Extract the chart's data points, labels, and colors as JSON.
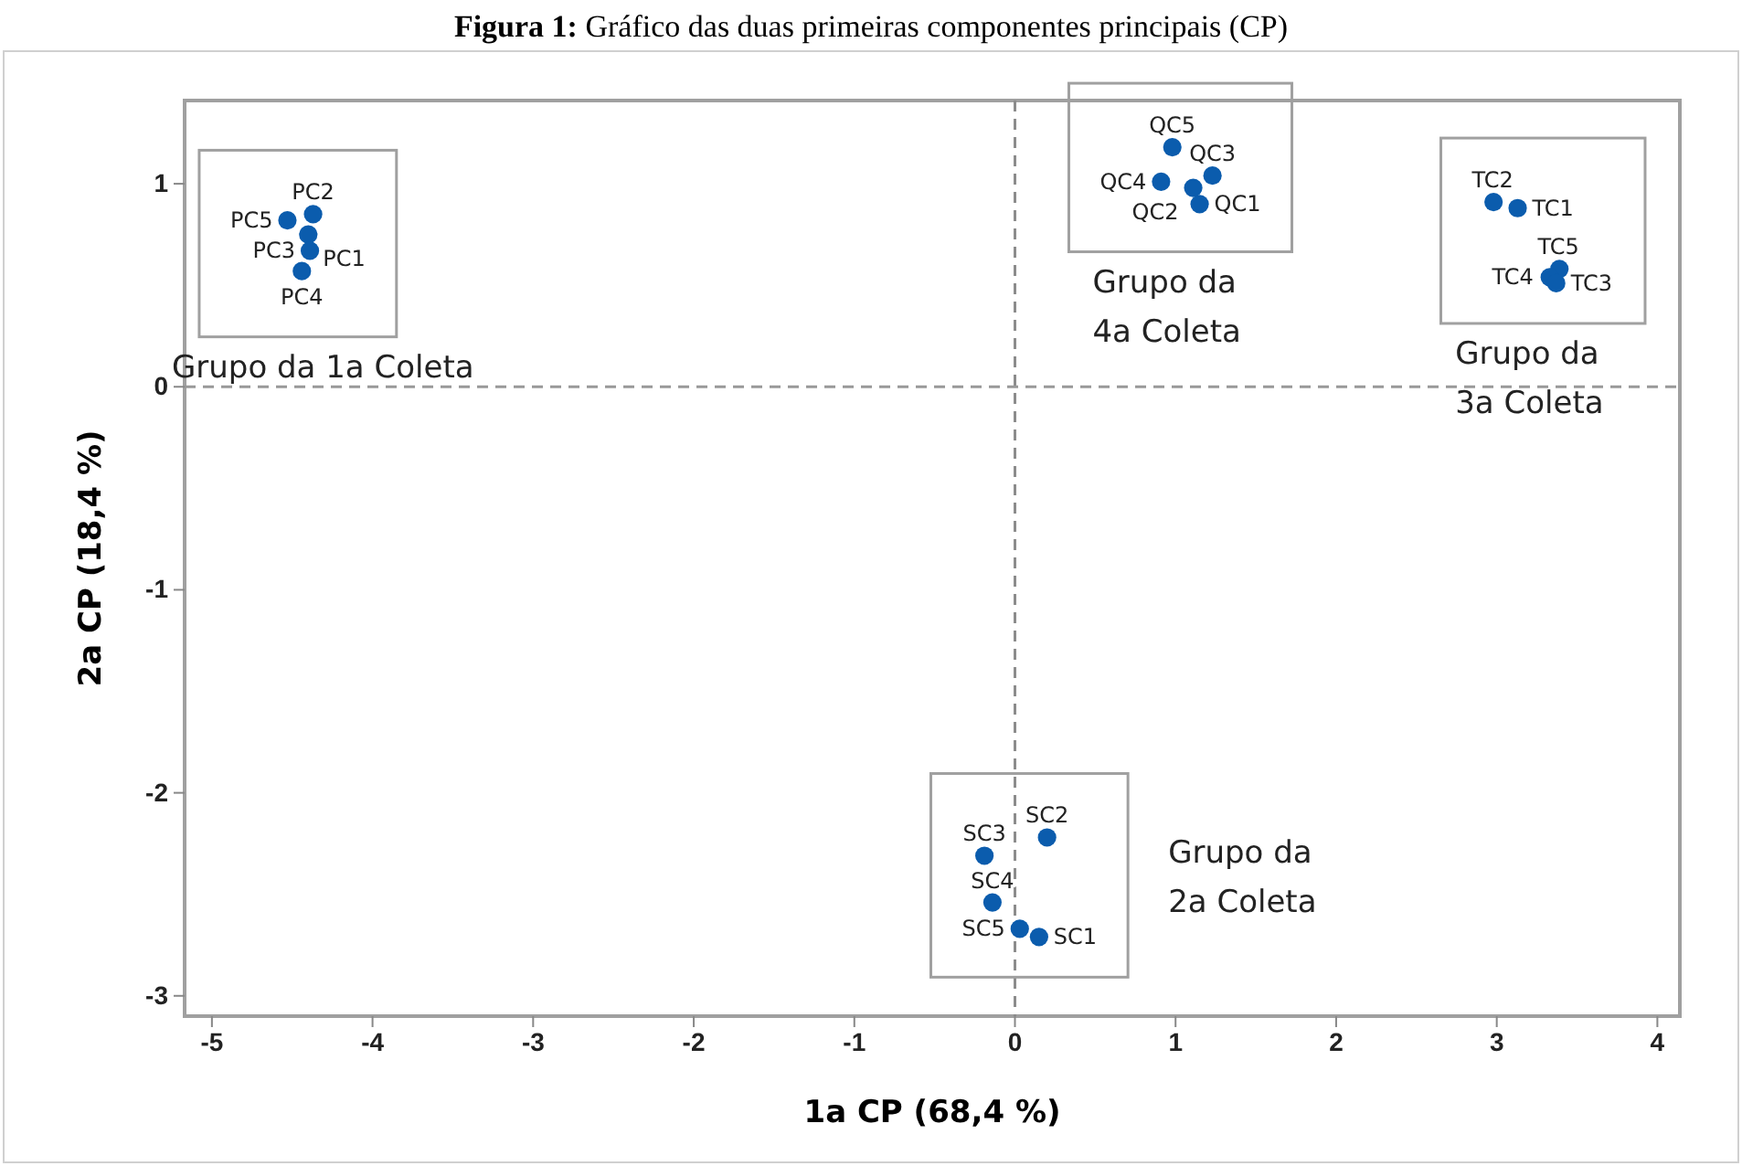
{
  "chart_data": {
    "type": "scatter",
    "title": "Figura 1: Gráfico das duas primeiras componentes principais (CP)",
    "xlabel": "1a CP (68,4 %)",
    "ylabel": "2a CP (18,4 %)",
    "xlim": [
      -5.17,
      4.14
    ],
    "ylim": [
      -3.1,
      1.41
    ],
    "xticks": [
      -5,
      -4,
      -3,
      -2,
      -1,
      0,
      1,
      2,
      3,
      4
    ],
    "yticks": [
      -3,
      -2,
      -1,
      0,
      1
    ],
    "grid": false,
    "marker": "circle",
    "ref_lines": [
      {
        "axis": "x",
        "value": 0,
        "line_style": "dashed",
        "color": "#8c8c8c"
      },
      {
        "axis": "y",
        "value": 0,
        "line_style": "dashed",
        "color": "#999999"
      }
    ],
    "series": [
      {
        "color": "#0b5cad",
        "x": [
          -4.53,
          -4.37,
          -4.4,
          -4.39,
          -4.44
        ],
        "values": [
          0.82,
          0.85,
          0.75,
          0.67,
          0.57
        ],
        "value_labels": [
          "PC5",
          "PC2",
          "PC1",
          "PC3",
          "PC4"
        ]
      },
      {
        "color": "#0b5cad",
        "x": [
          0.98,
          0.91,
          1.23,
          1.11,
          1.15
        ],
        "values": [
          1.18,
          1.01,
          1.04,
          0.98,
          0.9
        ],
        "value_labels": [
          "QC5",
          "QC4",
          "QC3",
          "QC2",
          "QC1"
        ]
      },
      {
        "color": "#0b5cad",
        "x": [
          2.98,
          3.13,
          3.39,
          3.33,
          3.37
        ],
        "values": [
          0.91,
          0.88,
          0.58,
          0.54,
          0.51
        ],
        "value_labels": [
          "TC2",
          "TC1",
          "TC5",
          "TC4",
          "TC3"
        ]
      },
      {
        "color": "#0b5cad",
        "x": [
          0.2,
          -0.19,
          -0.14,
          0.03,
          0.15
        ],
        "values": [
          -2.22,
          -2.31,
          -2.54,
          -2.67,
          -2.71
        ],
        "value_labels": [
          "SC2",
          "SC3",
          "SC4",
          "SC5",
          "SC1"
        ]
      }
    ],
    "annotations": [
      "Grupo da 1a Coleta",
      "Grupo da\n4a Coleta",
      "Grupo da\n3a Coleta",
      "Grupo da\n2a Coleta"
    ]
  }
}
